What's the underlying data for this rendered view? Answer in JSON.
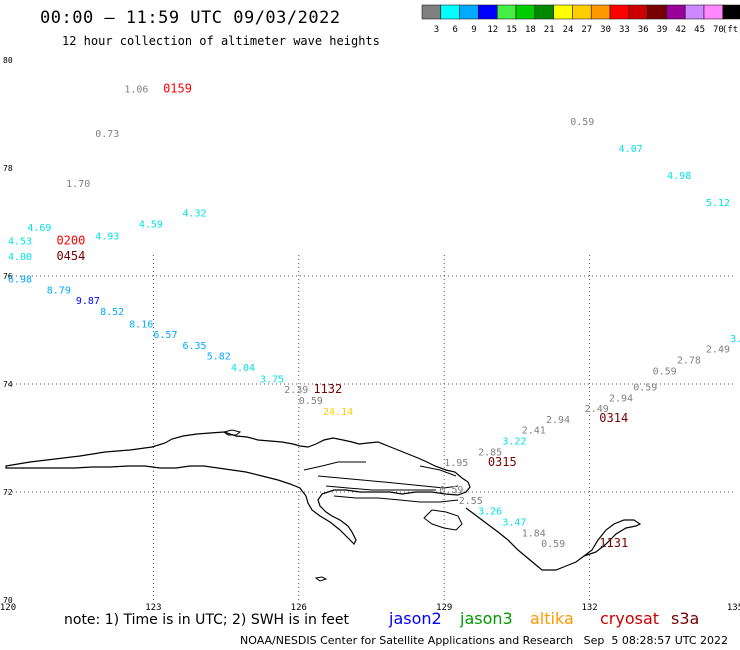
{
  "header": {
    "title": "00:00 – 11:59 UTC 09/03/2022",
    "subtitle": "12 hour collection of altimeter wave heights"
  },
  "legend": {
    "unit": "(ft)",
    "items": [
      {
        "label": "3",
        "color": "#808080"
      },
      {
        "label": "6",
        "color": "#00ffff"
      },
      {
        "label": "9",
        "color": "#00aaff"
      },
      {
        "label": "12",
        "color": "#0000ff"
      },
      {
        "label": "15",
        "color": "#44ee44"
      },
      {
        "label": "18",
        "color": "#00cc00"
      },
      {
        "label": "21",
        "color": "#008800"
      },
      {
        "label": "24",
        "color": "#ffff00"
      },
      {
        "label": "27",
        "color": "#ffcc00"
      },
      {
        "label": "30",
        "color": "#ff9900"
      },
      {
        "label": "33",
        "color": "#ff0000"
      },
      {
        "label": "36",
        "color": "#cc0000"
      },
      {
        "label": "39",
        "color": "#770000"
      },
      {
        "label": "42",
        "color": "#990099"
      },
      {
        "label": "45",
        "color": "#cc88ff"
      },
      {
        "label": "70",
        "color": "#ff88ff"
      },
      {
        "label": "",
        "color": "#000000"
      }
    ]
  },
  "map": {
    "lon_ticks": [
      "120",
      "123",
      "126",
      "129",
      "132",
      "135"
    ],
    "lat_ticks": [
      "70",
      "72",
      "74",
      "76",
      "78",
      "80"
    ]
  },
  "observations": [
    {
      "text": "1.06",
      "lon": 122.4,
      "lat": 79.4,
      "color": "#808080"
    },
    {
      "text": "0159",
      "lon": 123.2,
      "lat": 79.4,
      "color": "#ff0000",
      "time": true
    },
    {
      "text": "0.73",
      "lon": 121.8,
      "lat": 78.57,
      "color": "#808080"
    },
    {
      "text": "1.70",
      "lon": 121.2,
      "lat": 77.65,
      "color": "#808080"
    },
    {
      "text": "4.69",
      "lon": 120.4,
      "lat": 76.83,
      "color": "#00e5e5"
    },
    {
      "text": "4.53",
      "lon": 120.0,
      "lat": 76.58,
      "color": "#00e5e5"
    },
    {
      "text": "0200",
      "lon": 121.0,
      "lat": 76.58,
      "color": "#ff0000",
      "time": true
    },
    {
      "text": "4.00",
      "lon": 120.0,
      "lat": 76.3,
      "color": "#00e5e5"
    },
    {
      "text": "0454",
      "lon": 121.0,
      "lat": 76.3,
      "color": "#770000",
      "time": true
    },
    {
      "text": "4.93",
      "lon": 121.8,
      "lat": 76.68,
      "color": "#00e5e5"
    },
    {
      "text": "4.59",
      "lon": 122.7,
      "lat": 76.9,
      "color": "#00e5e5"
    },
    {
      "text": "4.32",
      "lon": 123.6,
      "lat": 77.1,
      "color": "#00e5e5"
    },
    {
      "text": "0.59",
      "lon": 131.6,
      "lat": 78.8,
      "color": "#808080"
    },
    {
      "text": "4.07",
      "lon": 132.6,
      "lat": 78.3,
      "color": "#00e5e5"
    },
    {
      "text": "4.98",
      "lon": 133.6,
      "lat": 77.8,
      "color": "#00e5e5"
    },
    {
      "text": "5.12",
      "lon": 134.4,
      "lat": 77.3,
      "color": "#00e5e5"
    },
    {
      "text": "6.98",
      "lon": 120.0,
      "lat": 75.88,
      "color": "#00aaff"
    },
    {
      "text": "8.79",
      "lon": 120.8,
      "lat": 75.68,
      "color": "#00aaff"
    },
    {
      "text": "9.87",
      "lon": 121.4,
      "lat": 75.48,
      "color": "#0000ff"
    },
    {
      "text": "8.52",
      "lon": 121.9,
      "lat": 75.28,
      "color": "#00aaff"
    },
    {
      "text": "8.16",
      "lon": 122.5,
      "lat": 75.05,
      "color": "#00aaff"
    },
    {
      "text": "6.57",
      "lon": 123.0,
      "lat": 74.85,
      "color": "#00aaff"
    },
    {
      "text": "6.35",
      "lon": 123.6,
      "lat": 74.65,
      "color": "#00aaff"
    },
    {
      "text": "5.82",
      "lon": 124.1,
      "lat": 74.45,
      "color": "#00aaff"
    },
    {
      "text": "4.04",
      "lon": 124.6,
      "lat": 74.24,
      "color": "#00e5e5"
    },
    {
      "text": "3.75",
      "lon": 125.2,
      "lat": 74.03,
      "color": "#00e5e5"
    },
    {
      "text": "2.39",
      "lon": 125.7,
      "lat": 73.83,
      "color": "#808080"
    },
    {
      "text": "1132",
      "lon": 126.3,
      "lat": 73.83,
      "color": "#770000",
      "time": true
    },
    {
      "text": "0.59",
      "lon": 126.0,
      "lat": 73.63,
      "color": "#808080"
    },
    {
      "text": "24.14",
      "lon": 126.5,
      "lat": 73.43,
      "color": "#ffcc00"
    },
    {
      "text": "3.",
      "lon": 134.9,
      "lat": 74.78,
      "color": "#00e5e5"
    },
    {
      "text": "2.49",
      "lon": 134.4,
      "lat": 74.58,
      "color": "#808080"
    },
    {
      "text": "2.78",
      "lon": 133.8,
      "lat": 74.38,
      "color": "#808080"
    },
    {
      "text": "0.59",
      "lon": 133.3,
      "lat": 74.18,
      "color": "#808080"
    },
    {
      "text": "0.59",
      "lon": 132.9,
      "lat": 73.88,
      "color": "#808080"
    },
    {
      "text": "2.94",
      "lon": 132.4,
      "lat": 73.68,
      "color": "#808080"
    },
    {
      "text": "2.49",
      "lon": 131.9,
      "lat": 73.48,
      "color": "#808080"
    },
    {
      "text": "0314",
      "lon": 132.2,
      "lat": 73.3,
      "color": "#770000",
      "time": true
    },
    {
      "text": "2.94",
      "lon": 131.1,
      "lat": 73.28,
      "color": "#808080"
    },
    {
      "text": "2.41",
      "lon": 130.6,
      "lat": 73.08,
      "color": "#808080"
    },
    {
      "text": "3.22",
      "lon": 130.2,
      "lat": 72.88,
      "color": "#00e5e5"
    },
    {
      "text": "2.85",
      "lon": 129.7,
      "lat": 72.68,
      "color": "#808080"
    },
    {
      "text": "1.95",
      "lon": 129.0,
      "lat": 72.48,
      "color": "#808080"
    },
    {
      "text": "0315",
      "lon": 129.9,
      "lat": 72.48,
      "color": "#770000",
      "time": true
    },
    {
      "text": "0.59",
      "lon": 128.9,
      "lat": 71.98,
      "color": "#808080"
    },
    {
      "text": "2.55",
      "lon": 129.3,
      "lat": 71.78,
      "color": "#808080"
    },
    {
      "text": "3.26",
      "lon": 129.7,
      "lat": 71.58,
      "color": "#00e5e5"
    },
    {
      "text": "3.47",
      "lon": 130.2,
      "lat": 71.38,
      "color": "#00e5e5"
    },
    {
      "text": "1.84",
      "lon": 130.6,
      "lat": 71.18,
      "color": "#808080"
    },
    {
      "text": "0.59",
      "lon": 131.0,
      "lat": 70.98,
      "color": "#808080"
    },
    {
      "text": "1131",
      "lon": 132.2,
      "lat": 70.98,
      "color": "#770000",
      "time": true
    }
  ],
  "footer": {
    "note": "note: 1) Time is in UTC; 2) SWH is in feet",
    "satellites": [
      {
        "name": "jason2",
        "color": "#0000ff"
      },
      {
        "name": "jason3",
        "color": "#009900"
      },
      {
        "name": "altika",
        "color": "#ff9900"
      },
      {
        "name": "cryosat",
        "color": "#cc0000"
      },
      {
        "name": "s3a",
        "color": "#770000"
      }
    ],
    "credit": "NOAA/NESDIS Center for Satellite Applications and Research   Sep  5 08:28:57 UTC 2022"
  }
}
